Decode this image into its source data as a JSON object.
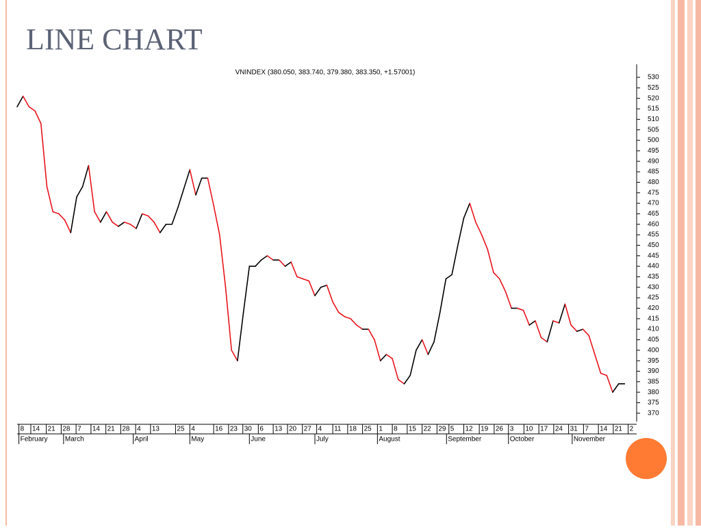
{
  "slide_title": "LINE CHART",
  "chart_data": {
    "type": "line",
    "title": "VNINDEX (380.050, 383.740, 379.380, 383.350, +1.57001)",
    "up_color": "#000000",
    "down_color": "#e8141b",
    "values": [
      516,
      521,
      516,
      514,
      508,
      478,
      466,
      465,
      462,
      456,
      473,
      478,
      488,
      466,
      461,
      466,
      461,
      459,
      461,
      460,
      458,
      465,
      464,
      461,
      456,
      460,
      460,
      468,
      477,
      486,
      474,
      482,
      482,
      469,
      455,
      430,
      400,
      395,
      418,
      440,
      440,
      443,
      445,
      443,
      443,
      440,
      442,
      435,
      434,
      433,
      426,
      430,
      431,
      423,
      418,
      416,
      415,
      412,
      410,
      410,
      405,
      395,
      398,
      396,
      386,
      384,
      388,
      400,
      405,
      398,
      404,
      418,
      434,
      436,
      450,
      463,
      470,
      461,
      455,
      448,
      437,
      434,
      428,
      420,
      420,
      419,
      412,
      414,
      406,
      404,
      414,
      413,
      422,
      412,
      409,
      410,
      407,
      398,
      389,
      388,
      380,
      384,
      384
    ],
    "ylim": [
      367,
      535
    ],
    "yticks": [
      370,
      375,
      380,
      385,
      390,
      395,
      400,
      405,
      410,
      415,
      420,
      425,
      430,
      435,
      440,
      445,
      450,
      455,
      460,
      465,
      470,
      475,
      480,
      485,
      490,
      495,
      500,
      505,
      510,
      515,
      520,
      525,
      530
    ],
    "xticks": [
      {
        "value": 0.3,
        "label": "8"
      },
      {
        "value": 2.3,
        "label": "14"
      },
      {
        "value": 4.9,
        "label": "21"
      },
      {
        "value": 7.4,
        "label": "28"
      },
      {
        "value": 9.9,
        "label": "7"
      },
      {
        "value": 12.4,
        "label": "14"
      },
      {
        "value": 14.9,
        "label": "21"
      },
      {
        "value": 17.4,
        "label": "28"
      },
      {
        "value": 19.9,
        "label": "4"
      },
      {
        "value": 22.4,
        "label": "13"
      },
      {
        "value": 26.6,
        "label": "25"
      },
      {
        "value": 29.0,
        "label": "4"
      },
      {
        "value": 33.0,
        "label": "16"
      },
      {
        "value": 35.5,
        "label": "23"
      },
      {
        "value": 37.9,
        "label": "30"
      },
      {
        "value": 40.5,
        "label": "6"
      },
      {
        "value": 43.0,
        "label": "13"
      },
      {
        "value": 45.4,
        "label": "20"
      },
      {
        "value": 47.9,
        "label": "27"
      },
      {
        "value": 50.3,
        "label": "4"
      },
      {
        "value": 53.0,
        "label": "11"
      },
      {
        "value": 55.5,
        "label": "18"
      },
      {
        "value": 58.0,
        "label": "25"
      },
      {
        "value": 60.5,
        "label": "1"
      },
      {
        "value": 63.0,
        "label": "8"
      },
      {
        "value": 65.5,
        "label": "15"
      },
      {
        "value": 68.0,
        "label": "22"
      },
      {
        "value": 70.5,
        "label": "29"
      },
      {
        "value": 72.5,
        "label": "5"
      },
      {
        "value": 75.0,
        "label": "12"
      },
      {
        "value": 77.6,
        "label": "19"
      },
      {
        "value": 80.1,
        "label": "26"
      },
      {
        "value": 82.5,
        "label": "3"
      },
      {
        "value": 85.1,
        "label": "10"
      },
      {
        "value": 87.6,
        "label": "17"
      },
      {
        "value": 90.1,
        "label": "24"
      },
      {
        "value": 92.6,
        "label": "31"
      },
      {
        "value": 95.1,
        "label": "7"
      },
      {
        "value": 97.6,
        "label": "14"
      },
      {
        "value": 100.1,
        "label": "21"
      },
      {
        "value": 102.6,
        "label": "2"
      }
    ],
    "month_ticks": [
      {
        "value": 0.3,
        "label": "February"
      },
      {
        "value": 7.8,
        "label": "March"
      },
      {
        "value": 19.5,
        "label": "April"
      },
      {
        "value": 29.0,
        "label": "May"
      },
      {
        "value": 39.0,
        "label": "June"
      },
      {
        "value": 50.0,
        "label": "July"
      },
      {
        "value": 60.5,
        "label": "August"
      },
      {
        "value": 72.1,
        "label": "September"
      },
      {
        "value": 82.5,
        "label": "October"
      },
      {
        "value": 93.2,
        "label": "November"
      }
    ]
  }
}
